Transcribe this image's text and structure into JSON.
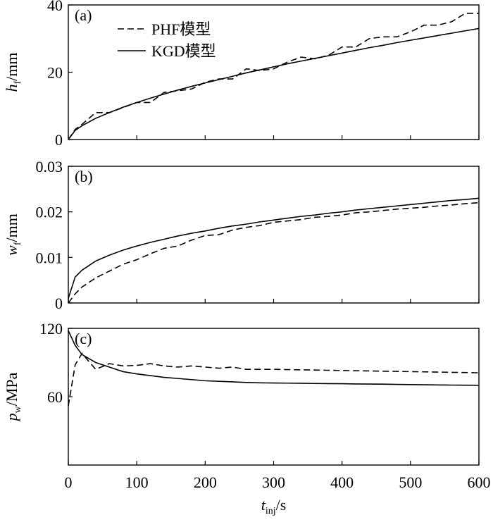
{
  "chart_data": [
    {
      "type": "line",
      "panel_label": "(a)",
      "ylabel": {
        "main": "h",
        "sub": "f",
        "rest": "/mm"
      },
      "x": [
        0,
        10,
        20,
        40,
        60,
        80,
        100,
        120,
        140,
        160,
        180,
        200,
        220,
        240,
        260,
        280,
        300,
        320,
        340,
        360,
        380,
        400,
        420,
        440,
        460,
        480,
        500,
        520,
        540,
        560,
        580,
        600
      ],
      "ylim": [
        0,
        40
      ],
      "yticks": [
        0,
        20,
        40
      ],
      "legend": "upper left",
      "series": [
        {
          "name": "PHF模型",
          "color": "#000000",
          "style": "dashed",
          "values": [
            0,
            3,
            4.5,
            8,
            8,
            9.5,
            11,
            11,
            14,
            14.5,
            15,
            17,
            18,
            18,
            21,
            20.5,
            21,
            23,
            24.5,
            24,
            25,
            27.5,
            27.5,
            30,
            30.5,
            30.5,
            32,
            34,
            34,
            35,
            37.5,
            37.5
          ]
        },
        {
          "name": "KGD模型",
          "color": "#000000",
          "style": "solid",
          "values": [
            0,
            2.7,
            4.1,
            6.3,
            8.0,
            9.6,
            11.0,
            12.3,
            13.5,
            14.7,
            15.8,
            16.8,
            17.8,
            18.8,
            19.8,
            20.7,
            21.6,
            22.5,
            23.3,
            24.1,
            24.9,
            25.7,
            26.5,
            27.3,
            28.0,
            28.8,
            29.5,
            30.2,
            30.9,
            31.6,
            32.3,
            33.0
          ]
        }
      ]
    },
    {
      "type": "line",
      "panel_label": "(b)",
      "ylabel": {
        "main": "w",
        "sub": "f",
        "rest": "/mm"
      },
      "x": [
        0,
        10,
        20,
        40,
        60,
        80,
        100,
        120,
        140,
        160,
        180,
        200,
        220,
        240,
        260,
        280,
        300,
        320,
        340,
        360,
        380,
        400,
        420,
        440,
        460,
        480,
        500,
        520,
        540,
        560,
        580,
        600
      ],
      "ylim": [
        0,
        0.03
      ],
      "yticks": [
        0,
        0.01,
        0.02,
        0.03
      ],
      "series": [
        {
          "color": "#000000",
          "style": "dashed",
          "values": [
            0,
            0.002,
            0.0035,
            0.0055,
            0.007,
            0.0085,
            0.0095,
            0.0108,
            0.012,
            0.0125,
            0.0138,
            0.0148,
            0.015,
            0.016,
            0.0166,
            0.017,
            0.0177,
            0.018,
            0.0183,
            0.0188,
            0.019,
            0.0193,
            0.0198,
            0.02,
            0.0203,
            0.0206,
            0.0208,
            0.021,
            0.0213,
            0.0215,
            0.0218,
            0.022
          ]
        },
        {
          "color": "#000000",
          "style": "solid",
          "values": [
            0.001,
            0.0057,
            0.0072,
            0.0092,
            0.0105,
            0.0116,
            0.0125,
            0.0133,
            0.014,
            0.0147,
            0.0153,
            0.0158,
            0.0164,
            0.0169,
            0.0173,
            0.0178,
            0.0182,
            0.0186,
            0.019,
            0.0193,
            0.0197,
            0.02,
            0.0204,
            0.0207,
            0.021,
            0.0213,
            0.0216,
            0.0219,
            0.0222,
            0.0225,
            0.0227,
            0.023
          ]
        }
      ]
    },
    {
      "type": "line",
      "panel_label": "(c)",
      "ylabel": {
        "main": "p",
        "sub": "w",
        "rest": "/MPa"
      },
      "xlabel": {
        "main": "t",
        "sub": "inj",
        "rest": "/s"
      },
      "x": [
        0,
        10,
        20,
        40,
        60,
        80,
        100,
        120,
        140,
        160,
        180,
        200,
        220,
        240,
        260,
        280,
        300,
        320,
        340,
        360,
        380,
        400,
        420,
        440,
        460,
        480,
        500,
        520,
        540,
        560,
        580,
        600
      ],
      "xlim": [
        0,
        600
      ],
      "xticks": [
        0,
        100,
        200,
        300,
        400,
        500,
        600
      ],
      "ylim": [
        0,
        120
      ],
      "yticks": [
        60,
        120
      ],
      "series": [
        {
          "color": "#000000",
          "style": "dashed",
          "values": [
            52,
            88,
            98,
            84,
            89,
            87,
            87.5,
            89,
            87,
            86,
            87,
            86,
            85,
            86,
            84,
            84,
            84,
            83.8,
            83.6,
            83.4,
            83.2,
            83,
            82.8,
            82.6,
            82.4,
            82.2,
            82,
            81.8,
            81.6,
            81.4,
            81.2,
            81
          ]
        },
        {
          "color": "#000000",
          "style": "solid",
          "values": [
            118,
            105,
            97,
            90,
            86,
            82,
            80,
            78.5,
            77,
            76,
            75,
            74,
            73.5,
            73,
            72.5,
            72.2,
            72,
            71.9,
            71.8,
            71.6,
            71.5,
            71.4,
            71.2,
            71.1,
            71,
            70.8,
            70.6,
            70.5,
            70.3,
            70.2,
            70.1,
            70
          ]
        }
      ]
    }
  ]
}
